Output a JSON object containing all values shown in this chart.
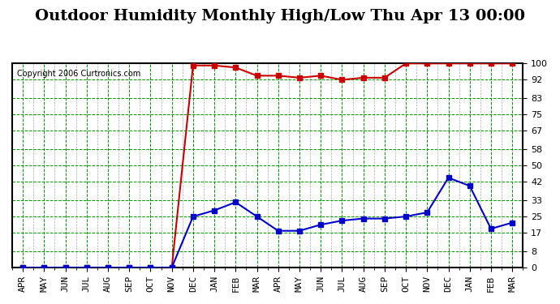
{
  "title": "Outdoor Humidity Monthly High/Low Thu Apr 13 00:00",
  "copyright": "Copyright 2006 Curtronics.com",
  "x_labels": [
    "APR",
    "MAY",
    "JUN",
    "JUL",
    "AUG",
    "SEP",
    "OCT",
    "NOV",
    "DEC",
    "JAN",
    "FEB",
    "MAR",
    "APR",
    "MAY",
    "JUN",
    "JUL",
    "AUG",
    "SEP",
    "OCT",
    "NOV",
    "DEC",
    "JAN",
    "FEB",
    "MAR"
  ],
  "high_values": [
    0,
    0,
    0,
    0,
    0,
    0,
    0,
    0,
    99,
    99,
    98,
    94,
    94,
    93,
    94,
    92,
    93,
    93,
    100,
    100,
    100,
    100,
    100,
    100
  ],
  "low_values": [
    0,
    0,
    0,
    0,
    0,
    0,
    0,
    0,
    25,
    28,
    32,
    25,
    18,
    18,
    21,
    23,
    24,
    24,
    25,
    27,
    44,
    40,
    19,
    22
  ],
  "high_color": "#cc0000",
  "low_color": "#0000cc",
  "bg_color": "#ffffff",
  "plot_bg_color": "#ffffff",
  "grid_color_major": "#009900",
  "grid_color_minor": "#009900",
  "yticks": [
    0,
    8,
    17,
    25,
    33,
    42,
    50,
    58,
    67,
    75,
    83,
    92,
    100
  ],
  "ylim": [
    0,
    100
  ],
  "marker": "s",
  "marker_size": 4,
  "line_width": 1.5,
  "title_fontsize": 14,
  "tick_fontsize": 8,
  "copyright_fontsize": 7
}
